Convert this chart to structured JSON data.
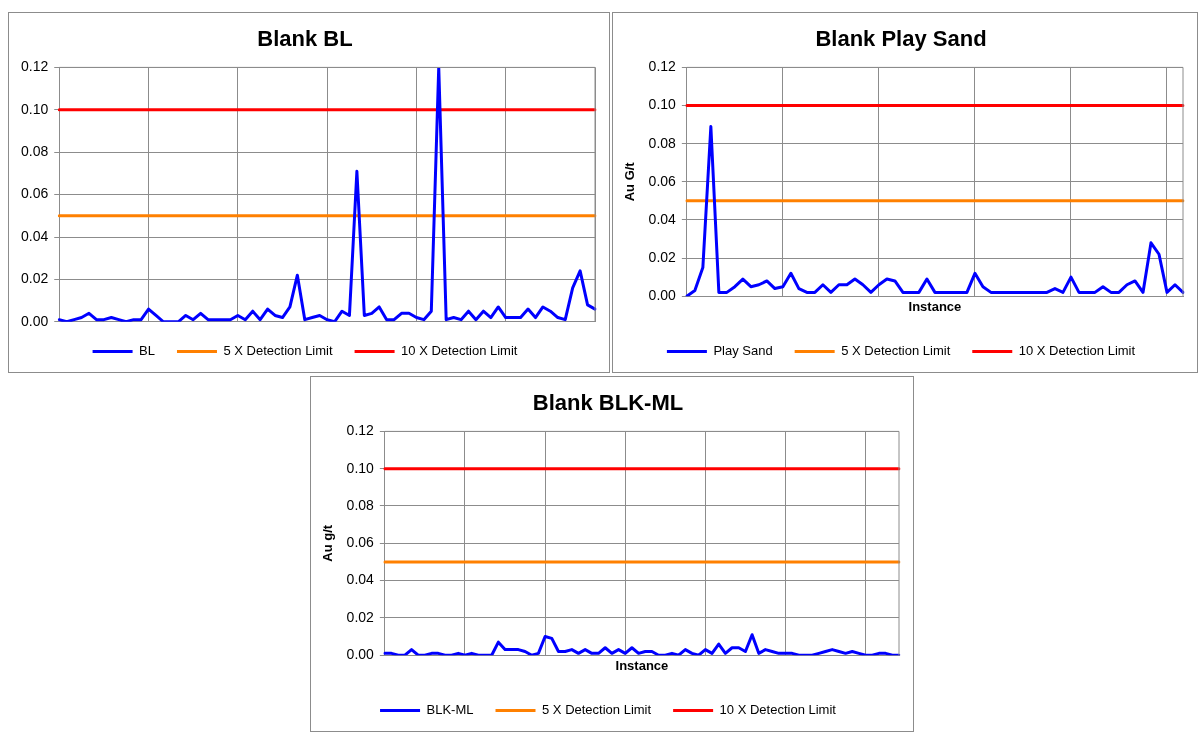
{
  "chart_data": [
    {
      "type": "line",
      "title": "Blank BL",
      "categories": [
        null,
        null,
        null,
        null,
        null,
        null,
        null,
        null,
        null,
        null,
        null,
        null,
        null,
        null,
        null,
        null,
        null,
        null,
        null,
        null,
        null,
        null,
        null,
        null,
        null,
        null,
        null,
        null,
        null,
        null,
        null,
        null,
        null,
        null,
        null,
        null,
        null,
        null,
        null,
        null,
        null,
        null,
        null,
        null,
        null,
        null,
        null,
        null,
        null,
        null,
        null,
        null,
        null,
        null,
        null,
        null,
        null,
        null,
        null,
        null,
        null,
        null,
        null,
        null,
        null,
        null,
        null,
        null,
        null,
        null,
        null,
        null,
        null
      ],
      "series": [
        {
          "name": "BL",
          "color": "#0000ff",
          "values": [
            0.001,
            0.0,
            0.001,
            0.002,
            0.004,
            0.001,
            0.001,
            0.002,
            0.001,
            0.0,
            0.001,
            0.001,
            0.006,
            0.003,
            0.0,
            0.0,
            0.0,
            0.003,
            0.001,
            0.004,
            0.001,
            0.001,
            0.001,
            0.001,
            0.003,
            0.001,
            0.005,
            0.001,
            0.006,
            0.003,
            0.002,
            0.007,
            0.022,
            0.001,
            0.002,
            0.003,
            0.001,
            0.0,
            0.005,
            0.003,
            0.071,
            0.003,
            0.004,
            0.007,
            0.001,
            0.001,
            0.004,
            0.004,
            0.002,
            0.001,
            0.005,
            0.12,
            0.001,
            0.002,
            0.001,
            0.005,
            0.001,
            0.005,
            0.002,
            0.007,
            0.002,
            0.002,
            0.002,
            0.006,
            0.002,
            0.007,
            0.005,
            0.002,
            0.001,
            0.016,
            0.024,
            0.008,
            0.006
          ]
        },
        {
          "name": "5 X Detection Limit",
          "color": "#ff8000",
          "values": [
            0.05,
            0.05,
            0.05,
            0.05,
            0.05,
            0.05,
            0.05,
            0.05,
            0.05,
            0.05,
            0.05,
            0.05,
            0.05,
            0.05,
            0.05,
            0.05,
            0.05,
            0.05,
            0.05,
            0.05,
            0.05,
            0.05,
            0.05,
            0.05,
            0.05,
            0.05,
            0.05,
            0.05,
            0.05,
            0.05,
            0.05,
            0.05,
            0.05,
            0.05,
            0.05,
            0.05,
            0.05,
            0.05,
            0.05,
            0.05,
            0.05,
            0.05,
            0.05,
            0.05,
            0.05,
            0.05,
            0.05,
            0.05,
            0.05,
            0.05,
            0.05,
            0.05,
            0.05,
            0.05,
            0.05,
            0.05,
            0.05,
            0.05,
            0.05,
            0.05,
            0.05,
            0.05,
            0.05,
            0.05,
            0.05,
            0.05,
            0.05,
            0.05,
            0.05,
            0.05,
            0.05,
            0.05,
            0.05
          ]
        },
        {
          "name": "10 X Detection Limit",
          "color": "#ff0000",
          "values": [
            0.1,
            0.1,
            0.1,
            0.1,
            0.1,
            0.1,
            0.1,
            0.1,
            0.1,
            0.1,
            0.1,
            0.1,
            0.1,
            0.1,
            0.1,
            0.1,
            0.1,
            0.1,
            0.1,
            0.1,
            0.1,
            0.1,
            0.1,
            0.1,
            0.1,
            0.1,
            0.1,
            0.1,
            0.1,
            0.1,
            0.1,
            0.1,
            0.1,
            0.1,
            0.1,
            0.1,
            0.1,
            0.1,
            0.1,
            0.1,
            0.1,
            0.1,
            0.1,
            0.1,
            0.1,
            0.1,
            0.1,
            0.1,
            0.1,
            0.1,
            0.1,
            0.1,
            0.1,
            0.1,
            0.1,
            0.1,
            0.1,
            0.1,
            0.1,
            0.1,
            0.1,
            0.1,
            0.1,
            0.1,
            0.1,
            0.1,
            0.1,
            0.1,
            0.1,
            0.1,
            0.1,
            0.1,
            0.1
          ]
        }
      ],
      "ylim": [
        0,
        0.12
      ],
      "yticks": [
        {
          "value": 0,
          "label": "0.00"
        },
        {
          "value": 0.02,
          "label": "0.02"
        },
        {
          "value": 0.04,
          "label": "0.04"
        },
        {
          "value": 0.06,
          "label": "0.06"
        },
        {
          "value": 0.08,
          "label": "0.08"
        },
        {
          "value": 0.1,
          "label": "0.10"
        },
        {
          "value": 0.12,
          "label": "0.12"
        }
      ],
      "grid": true,
      "legend": "bottom",
      "marker": "none",
      "line_style": "solid"
    },
    {
      "type": "line",
      "title": "Blank Play Sand",
      "xlabel": "Instance",
      "ylabel": "Au G/t",
      "categories": [
        null,
        null,
        null,
        null,
        null,
        null,
        null,
        null,
        null,
        null,
        null,
        null,
        null,
        null,
        null,
        null,
        null,
        null,
        null,
        null,
        null,
        null,
        null,
        null,
        null,
        null,
        null,
        null,
        null,
        null,
        null,
        null,
        null,
        null,
        null,
        null,
        null,
        null,
        null,
        null,
        null,
        null,
        null,
        null,
        null,
        null,
        null,
        null,
        null,
        null,
        null,
        null,
        null,
        null,
        null,
        null,
        null,
        null,
        null,
        null,
        null,
        null,
        null
      ],
      "series": [
        {
          "name": "Play Sand",
          "color": "#0000ff",
          "values": [
            0.0,
            0.003,
            0.015,
            0.089,
            0.002,
            0.002,
            0.005,
            0.009,
            0.005,
            0.006,
            0.008,
            0.004,
            0.005,
            0.012,
            0.004,
            0.002,
            0.002,
            0.006,
            0.002,
            0.006,
            0.006,
            0.009,
            0.006,
            0.002,
            0.006,
            0.009,
            0.008,
            0.002,
            0.002,
            0.002,
            0.009,
            0.002,
            0.002,
            0.002,
            0.002,
            0.002,
            0.012,
            0.005,
            0.002,
            0.002,
            0.002,
            0.002,
            0.002,
            0.002,
            0.002,
            0.002,
            0.004,
            0.002,
            0.01,
            0.002,
            0.002,
            0.002,
            0.005,
            0.002,
            0.002,
            0.006,
            0.008,
            0.002,
            0.028,
            0.022,
            0.002,
            0.006,
            0.002
          ]
        },
        {
          "name": "5 X Detection Limit",
          "color": "#ff8000",
          "values": [
            0.05,
            0.05,
            0.05,
            0.05,
            0.05,
            0.05,
            0.05,
            0.05,
            0.05,
            0.05,
            0.05,
            0.05,
            0.05,
            0.05,
            0.05,
            0.05,
            0.05,
            0.05,
            0.05,
            0.05,
            0.05,
            0.05,
            0.05,
            0.05,
            0.05,
            0.05,
            0.05,
            0.05,
            0.05,
            0.05,
            0.05,
            0.05,
            0.05,
            0.05,
            0.05,
            0.05,
            0.05,
            0.05,
            0.05,
            0.05,
            0.05,
            0.05,
            0.05,
            0.05,
            0.05,
            0.05,
            0.05,
            0.05,
            0.05,
            0.05,
            0.05,
            0.05,
            0.05,
            0.05,
            0.05,
            0.05,
            0.05,
            0.05,
            0.05,
            0.05,
            0.05,
            0.05,
            0.05
          ]
        },
        {
          "name": "10 X Detection Limit",
          "color": "#ff0000",
          "values": [
            0.1,
            0.1,
            0.1,
            0.1,
            0.1,
            0.1,
            0.1,
            0.1,
            0.1,
            0.1,
            0.1,
            0.1,
            0.1,
            0.1,
            0.1,
            0.1,
            0.1,
            0.1,
            0.1,
            0.1,
            0.1,
            0.1,
            0.1,
            0.1,
            0.1,
            0.1,
            0.1,
            0.1,
            0.1,
            0.1,
            0.1,
            0.1,
            0.1,
            0.1,
            0.1,
            0.1,
            0.1,
            0.1,
            0.1,
            0.1,
            0.1,
            0.1,
            0.1,
            0.1,
            0.1,
            0.1,
            0.1,
            0.1,
            0.1,
            0.1,
            0.1,
            0.1,
            0.1,
            0.1,
            0.1,
            0.1,
            0.1,
            0.1,
            0.1,
            0.1,
            0.1,
            0.1,
            0.1
          ]
        }
      ],
      "ylim": [
        0,
        0.12
      ],
      "yticks": [
        {
          "value": 0,
          "label": "0.00"
        },
        {
          "value": 0.02,
          "label": "0.02"
        },
        {
          "value": 0.04,
          "label": "0.04"
        },
        {
          "value": 0.06,
          "label": "0.06"
        },
        {
          "value": 0.08,
          "label": "0.08"
        },
        {
          "value": 0.1,
          "label": "0.10"
        },
        {
          "value": 0.12,
          "label": "0.12"
        }
      ],
      "grid": true,
      "legend": "bottom",
      "marker": "none",
      "line_style": "solid"
    },
    {
      "type": "line",
      "title": "Blank BLK-ML",
      "xlabel": "Instance",
      "ylabel": "Au g/t",
      "categories": [
        null,
        null,
        null,
        null,
        null,
        null,
        null,
        null,
        null,
        null,
        null,
        null,
        null,
        null,
        null,
        null,
        null,
        null,
        null,
        null,
        null,
        null,
        null,
        null,
        null,
        null,
        null,
        null,
        null,
        null,
        null,
        null,
        null,
        null,
        null,
        null,
        null,
        null,
        null,
        null,
        null,
        null,
        null,
        null,
        null,
        null,
        null,
        null,
        null,
        null,
        null,
        null,
        null,
        null,
        null,
        null,
        null,
        null,
        null,
        null,
        null,
        null,
        null,
        null,
        null,
        null,
        null,
        null,
        null,
        null,
        null,
        null,
        null,
        null,
        null,
        null,
        null,
        null
      ],
      "series": [
        {
          "name": "BLK-ML",
          "color": "#0000ff",
          "values": [
            0.001,
            0.001,
            0.0,
            0.0,
            0.003,
            0.0,
            0.0,
            0.001,
            0.001,
            0.0,
            0.0,
            0.001,
            0.0,
            0.001,
            0.0,
            0.0,
            0.0,
            0.007,
            0.003,
            0.003,
            0.003,
            0.002,
            0.0,
            0.001,
            0.01,
            0.009,
            0.002,
            0.002,
            0.003,
            0.001,
            0.003,
            0.001,
            0.001,
            0.004,
            0.001,
            0.003,
            0.001,
            0.004,
            0.001,
            0.002,
            0.002,
            0.0,
            0.0,
            0.001,
            0.0,
            0.003,
            0.001,
            0.0,
            0.003,
            0.001,
            0.006,
            0.001,
            0.004,
            0.004,
            0.002,
            0.011,
            0.001,
            0.003,
            0.002,
            0.001,
            0.001,
            0.001,
            0.0,
            0.0,
            0.0,
            0.001,
            0.002,
            0.003,
            0.002,
            0.001,
            0.002,
            0.001,
            0.0,
            0.0,
            0.001,
            0.001,
            0.0,
            0.0
          ]
        },
        {
          "name": "5 X Detection Limit",
          "color": "#ff8000",
          "values": [
            0.05,
            0.05,
            0.05,
            0.05,
            0.05,
            0.05,
            0.05,
            0.05,
            0.05,
            0.05,
            0.05,
            0.05,
            0.05,
            0.05,
            0.05,
            0.05,
            0.05,
            0.05,
            0.05,
            0.05,
            0.05,
            0.05,
            0.05,
            0.05,
            0.05,
            0.05,
            0.05,
            0.05,
            0.05,
            0.05,
            0.05,
            0.05,
            0.05,
            0.05,
            0.05,
            0.05,
            0.05,
            0.05,
            0.05,
            0.05,
            0.05,
            0.05,
            0.05,
            0.05,
            0.05,
            0.05,
            0.05,
            0.05,
            0.05,
            0.05,
            0.05,
            0.05,
            0.05,
            0.05,
            0.05,
            0.05,
            0.05,
            0.05,
            0.05,
            0.05,
            0.05,
            0.05,
            0.05,
            0.05,
            0.05,
            0.05,
            0.05,
            0.05,
            0.05,
            0.05,
            0.05,
            0.05,
            0.05,
            0.05,
            0.05,
            0.05,
            0.05,
            0.05
          ]
        },
        {
          "name": "10 X Detection Limit",
          "color": "#ff0000",
          "values": [
            0.1,
            0.1,
            0.1,
            0.1,
            0.1,
            0.1,
            0.1,
            0.1,
            0.1,
            0.1,
            0.1,
            0.1,
            0.1,
            0.1,
            0.1,
            0.1,
            0.1,
            0.1,
            0.1,
            0.1,
            0.1,
            0.1,
            0.1,
            0.1,
            0.1,
            0.1,
            0.1,
            0.1,
            0.1,
            0.1,
            0.1,
            0.1,
            0.1,
            0.1,
            0.1,
            0.1,
            0.1,
            0.1,
            0.1,
            0.1,
            0.1,
            0.1,
            0.1,
            0.1,
            0.1,
            0.1,
            0.1,
            0.1,
            0.1,
            0.1,
            0.1,
            0.1,
            0.1,
            0.1,
            0.1,
            0.1,
            0.1,
            0.1,
            0.1,
            0.1,
            0.1,
            0.1,
            0.1,
            0.1,
            0.1,
            0.1,
            0.1,
            0.1,
            0.1,
            0.1,
            0.1,
            0.1,
            0.1,
            0.1,
            0.1,
            0.1,
            0.1,
            0.1
          ]
        }
      ],
      "ylim": [
        0,
        0.12
      ],
      "yticks": [
        {
          "value": 0,
          "label": "0.00"
        },
        {
          "value": 0.02,
          "label": "0.02"
        },
        {
          "value": 0.04,
          "label": "0.04"
        },
        {
          "value": 0.06,
          "label": "0.06"
        },
        {
          "value": 0.08,
          "label": "0.08"
        },
        {
          "value": 0.1,
          "label": "0.10"
        },
        {
          "value": 0.12,
          "label": "0.12"
        }
      ],
      "grid": true,
      "legend": "bottom",
      "marker": "none",
      "line_style": "solid"
    }
  ]
}
